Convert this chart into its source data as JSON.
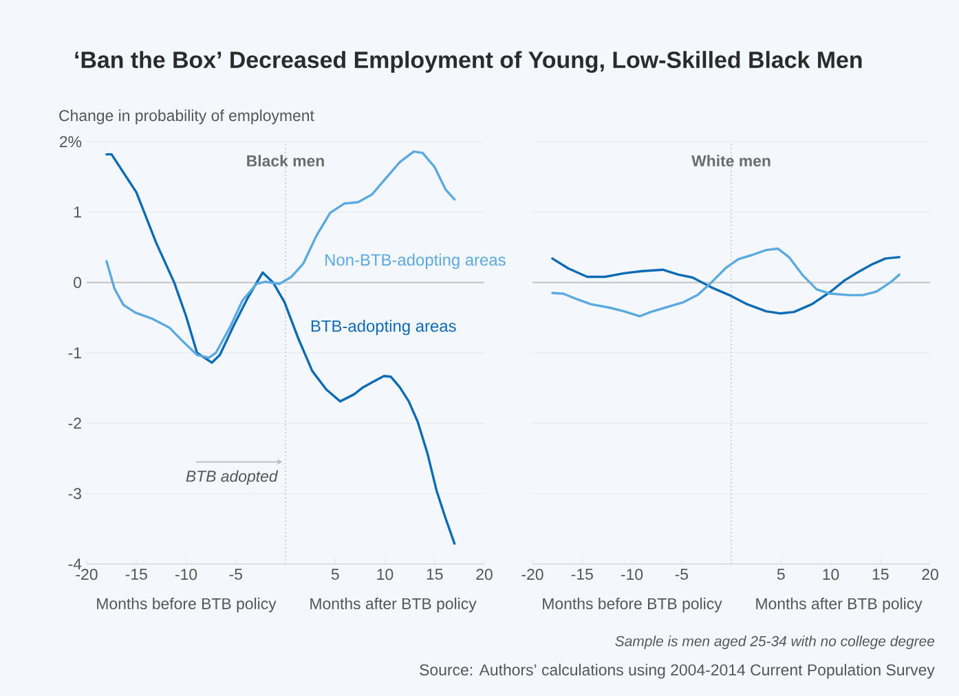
{
  "chart_data": [
    {
      "type": "line",
      "title": "‘Ban the Box’ Decreased Employment of Young, Low-Skilled Black Men",
      "subtitle": "Black men",
      "ylabel": "Change in probability of employment",
      "annotations": [
        "Months before BTB policy",
        "Months after BTB policy"
      ],
      "xlim": [
        -20,
        20
      ],
      "ylim": [
        -4,
        2
      ],
      "xticks": [
        -20,
        -15,
        -10,
        -5,
        5,
        10,
        15,
        20
      ],
      "yticks": [
        {
          "value": 2,
          "label": "2%"
        },
        1,
        0,
        -1,
        -2,
        -3,
        -4
      ],
      "grid": "y",
      "ref_lines": [
        {
          "axis": "x",
          "value": 0,
          "label": "BTB adopted",
          "line_style": "dotted",
          "color": "#bbbbbb"
        },
        {
          "axis": "y",
          "value": 0,
          "color": "#c4c4c4"
        }
      ],
      "series": [
        {
          "name": "BTB-adopting areas",
          "color": "#0b6bb5",
          "x": [
            -18,
            -17.5,
            -15,
            -13,
            -11.2,
            -10,
            -8.9,
            -7.4,
            -6.6,
            -5.2,
            -3.8,
            -2.3,
            -1.25,
            -0.1,
            1.3,
            2.7,
            4.1,
            5.5,
            6.9,
            7.8,
            8.7,
            9.9,
            10.6,
            11.5,
            12.4,
            13.3,
            14.3,
            15.2,
            16.1,
            17
          ],
          "values": [
            1.82,
            1.82,
            1.28,
            0.56,
            0,
            -0.48,
            -1.0,
            -1.14,
            -1.03,
            -0.61,
            -0.22,
            0.14,
            0.0,
            -0.28,
            -0.8,
            -1.26,
            -1.52,
            -1.69,
            -1.59,
            -1.49,
            -1.42,
            -1.33,
            -1.34,
            -1.49,
            -1.69,
            -1.98,
            -2.44,
            -2.96,
            -3.35,
            -3.71
          ]
        },
        {
          "name": "Non-BTB-adopting areas",
          "color": "#5ba9e1",
          "x": [
            -18,
            -17.2,
            -16.3,
            -15.1,
            -13.5,
            -11.7,
            -10.3,
            -8.9,
            -7.7,
            -7.0,
            -5.6,
            -4.3,
            -2.9,
            -2.0,
            -0.6,
            0.6,
            1.8,
            3.1,
            4.5,
            5.9,
            7.3,
            8.7,
            10.1,
            11.5,
            12.9,
            13.8,
            15.0,
            16.1,
            17
          ],
          "values": [
            0.3,
            -0.09,
            -0.32,
            -0.43,
            -0.51,
            -0.64,
            -0.84,
            -1.03,
            -1.07,
            -1.0,
            -0.64,
            -0.25,
            -0.02,
            0.01,
            -0.02,
            0.08,
            0.27,
            0.66,
            0.99,
            1.12,
            1.14,
            1.25,
            1.48,
            1.71,
            1.86,
            1.84,
            1.64,
            1.32,
            1.18
          ]
        }
      ]
    },
    {
      "type": "line",
      "subtitle": "White men",
      "annotations": [
        "Months before BTB policy",
        "Months after BTB policy",
        "*Sample is men aged 25-34 with no college degree*",
        "Source: Authors’ calculations using 2004-2014 Current Population Survey"
      ],
      "xlim": [
        -20,
        20
      ],
      "ylim": [
        -4,
        2
      ],
      "xticks": [
        -20,
        -15,
        -10,
        -5,
        5,
        10,
        15,
        20
      ],
      "yticks": [
        2,
        1,
        0,
        -1,
        -2,
        -3,
        -4
      ],
      "grid": "y",
      "tick_labels": "x",
      "ref_lines": [
        {
          "axis": "x",
          "value": 0,
          "line_style": "dotted",
          "color": "#bbbbbb"
        },
        {
          "axis": "y",
          "value": 0,
          "color": "#c4c4c4"
        }
      ],
      "series": [
        {
          "color": "#0b6bb5",
          "x": [
            -18,
            -16.4,
            -14.5,
            -12.7,
            -10.8,
            -9.0,
            -6.9,
            -5.3,
            -3.9,
            -2.0,
            -0.2,
            1.6,
            3.5,
            4.9,
            6.3,
            8.1,
            10.0,
            11.4,
            12.8,
            14.2,
            15.5,
            16.9
          ],
          "values": [
            0.34,
            0.2,
            0.08,
            0.08,
            0.13,
            0.16,
            0.18,
            0.11,
            0.07,
            -0.07,
            -0.18,
            -0.31,
            -0.41,
            -0.44,
            -0.42,
            -0.31,
            -0.13,
            0.03,
            0.15,
            0.26,
            0.34,
            0.36
          ]
        },
        {
          "color": "#5ba9e1",
          "x": [
            -18,
            -16.9,
            -15.5,
            -14.1,
            -12.2,
            -10.8,
            -9.2,
            -8.1,
            -6.7,
            -4.8,
            -3.4,
            -2.0,
            -0.6,
            0.7,
            2.1,
            3.5,
            4.7,
            5.8,
            7.2,
            8.6,
            10.0,
            11.9,
            13.2,
            14.6,
            16.0,
            16.9
          ],
          "values": [
            -0.15,
            -0.16,
            -0.24,
            -0.31,
            -0.36,
            -0.41,
            -0.48,
            -0.42,
            -0.36,
            -0.28,
            -0.18,
            0.0,
            0.2,
            0.33,
            0.39,
            0.46,
            0.48,
            0.36,
            0.1,
            -0.1,
            -0.16,
            -0.18,
            -0.18,
            -0.13,
            0.0,
            0.11
          ]
        }
      ]
    }
  ]
}
